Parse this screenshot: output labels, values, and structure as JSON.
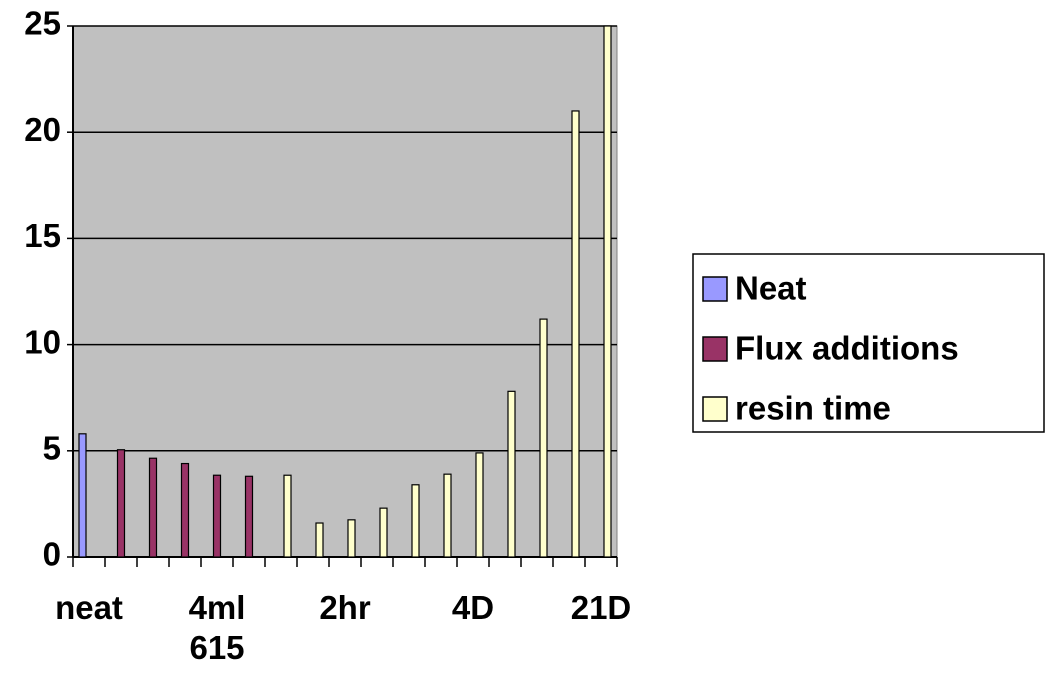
{
  "chart_data": {
    "type": "bar",
    "categories": [
      "neat",
      null,
      null,
      null,
      "4ml 615",
      null,
      null,
      null,
      "2hr",
      null,
      null,
      null,
      "4D",
      null,
      null,
      null,
      "21D"
    ],
    "series": [
      {
        "name": "Neat",
        "color": "#9999ff",
        "values": [
          5.8,
          null,
          null,
          null,
          null,
          null,
          null,
          null,
          null,
          null,
          null,
          null,
          null,
          null,
          null,
          null,
          null
        ]
      },
      {
        "name": "Flux additions",
        "color": "#993366",
        "values": [
          null,
          5.05,
          4.65,
          4.4,
          3.85,
          3.8,
          null,
          null,
          null,
          null,
          null,
          null,
          null,
          null,
          null,
          null,
          null
        ]
      },
      {
        "name": "resin time",
        "color": "#ffffcc",
        "values": [
          null,
          null,
          null,
          null,
          null,
          null,
          3.85,
          1.6,
          1.75,
          2.3,
          3.4,
          3.9,
          4.9,
          7.8,
          11.2,
          21,
          25
        ]
      }
    ],
    "ylim": [
      0,
      25
    ],
    "yticks": [
      0,
      5,
      10,
      15,
      20,
      25
    ],
    "grid": true,
    "plot_background": "#c0c0c0",
    "legend": "right"
  }
}
